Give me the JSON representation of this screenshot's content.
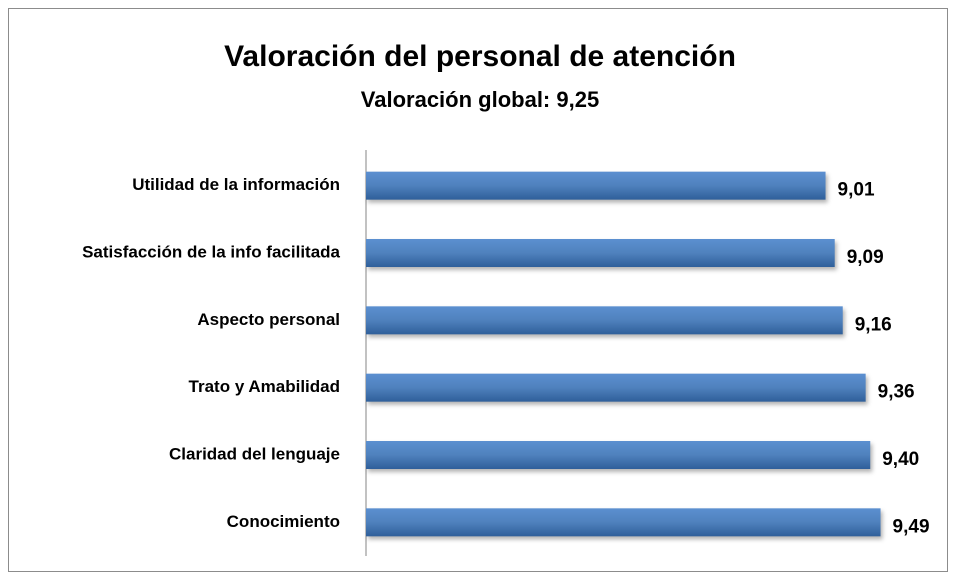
{
  "chart_data": {
    "type": "bar",
    "orientation": "horizontal",
    "title": "Valoración del personal de atención",
    "subtitle": "Valoración global: 9,25",
    "categories": [
      "Utilidad de la información",
      "Satisfacción de la info facilitada",
      "Aspecto personal",
      "Trato y Amabilidad",
      "Claridad del lenguaje",
      "Conocimiento"
    ],
    "values": [
      9.01,
      9.09,
      9.16,
      9.36,
      9.4,
      9.49
    ],
    "value_labels": [
      "9,01",
      "9,09",
      "9,16",
      "9,36",
      "9,40",
      "9,49"
    ],
    "color": "#4f81bd",
    "xlim": [
      5,
      10
    ]
  }
}
